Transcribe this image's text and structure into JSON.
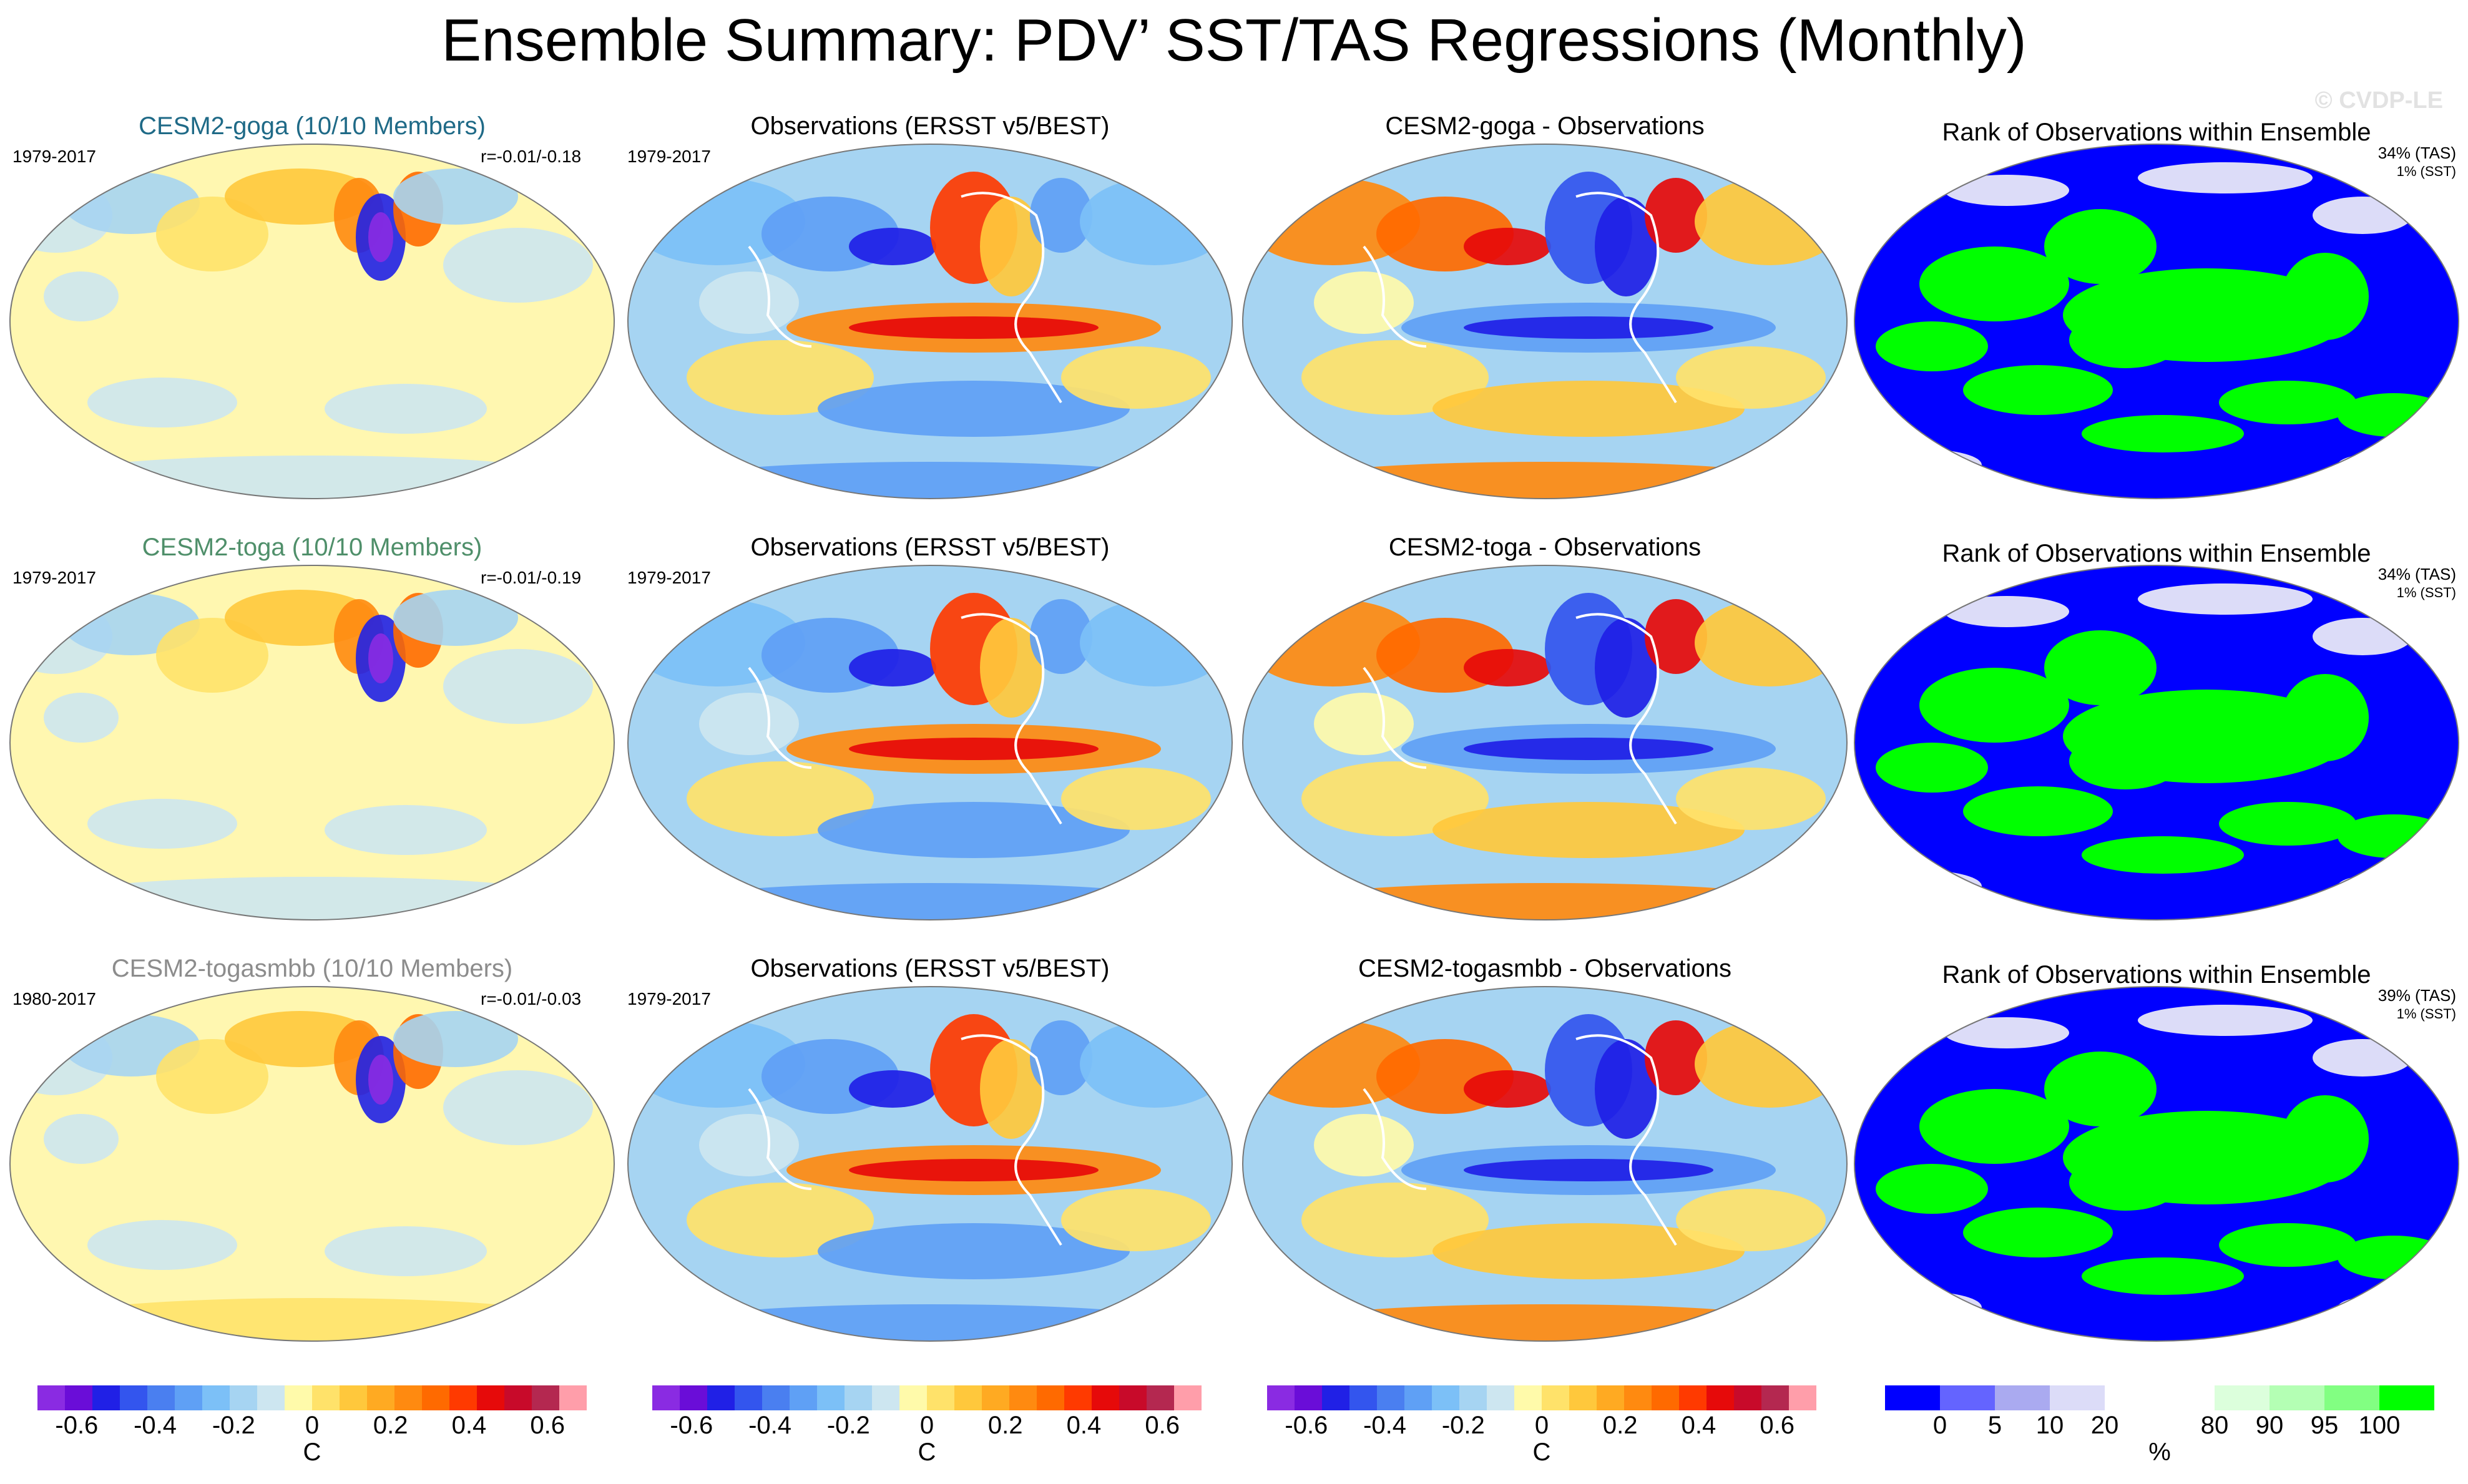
{
  "title": "Ensemble Summary: PDV’ SST/TAS Regressions (Monthly)",
  "watermark": "© CVDP-LE",
  "rows": [
    {
      "model_title": "CESM2-goga (10/10 Members)",
      "model_title_color": "#1f6a87",
      "model_period": "1979-2017",
      "model_r": "r=-0.01/-0.18",
      "obs_title": "Observations (ERSST v5/BEST)",
      "obs_period": "1979-2017",
      "diff_title": "CESM2-goga - Observations",
      "rank_title": "Rank of Observations within Ensemble",
      "rank_tas": "34% (TAS)",
      "rank_sst": "1% (SST)"
    },
    {
      "model_title": "CESM2-toga (10/10 Members)",
      "model_title_color": "#4f8f6a",
      "model_period": "1979-2017",
      "model_r": "r=-0.01/-0.19",
      "obs_title": "Observations (ERSST v5/BEST)",
      "obs_period": "1979-2017",
      "diff_title": "CESM2-toga - Observations",
      "rank_title": "Rank of Observations within Ensemble",
      "rank_tas": "34% (TAS)",
      "rank_sst": "1% (SST)"
    },
    {
      "model_title": "CESM2-togasmbb (10/10 Members)",
      "model_title_color": "#8c8c8c",
      "model_period": "1980-2017",
      "model_r": "r=-0.01/-0.03",
      "obs_title": "Observations (ERSST v5/BEST)",
      "obs_period": "1979-2017",
      "diff_title": "CESM2-togasmbb - Observations",
      "rank_title": "Rank of Observations within Ensemble",
      "rank_tas": "39% (TAS)",
      "rank_sst": "1% (SST)"
    }
  ],
  "chart_data": {
    "type": "heatmap",
    "title": "Ensemble Summary: PDV’ SST/TAS Regressions (Monthly)",
    "projection": "global-pacific-centered",
    "regression_colorbar": {
      "unit": "C",
      "range": [
        -0.7,
        0.7
      ],
      "ticks": [
        "-0.6",
        "-0.4",
        "-0.2",
        "0",
        "0.2",
        "0.4",
        "0.6"
      ],
      "tick_values": [
        -0.6,
        -0.4,
        -0.2,
        0,
        0.2,
        0.4,
        0.6
      ],
      "colors": [
        "#8a2be2",
        "#6a0dd8",
        "#2020e6",
        "#3355ee",
        "#4a7ff0",
        "#5fa0f5",
        "#7cc0f7",
        "#a6d4f2",
        "#cde6f0",
        "#fffaaa",
        "#ffe26a",
        "#ffc83c",
        "#ffaa22",
        "#ff8a10",
        "#ff6a00",
        "#ff3a00",
        "#e60a0a",
        "#c80a2a",
        "#b42850",
        "#ff9eaa"
      ]
    },
    "rank_colorbar": {
      "unit": "%",
      "ticks": [
        "0",
        "5",
        "10",
        "20",
        "80",
        "90",
        "95",
        "100"
      ],
      "tick_values": [
        0,
        5,
        10,
        20,
        80,
        90,
        95,
        100
      ],
      "colors": [
        "#0000ff",
        "#6464ff",
        "#aaaaf0",
        "#dcdcf8",
        "#ffffff",
        "#ffffff",
        "#dcffdc",
        "#b4ffb4",
        "#82ff82",
        "#00ff00"
      ]
    },
    "columns": [
      "model ensemble mean",
      "observations",
      "model minus observations",
      "rank of observations"
    ],
    "rows": [
      "CESM2-goga",
      "CESM2-toga",
      "CESM2-togasmbb"
    ]
  }
}
